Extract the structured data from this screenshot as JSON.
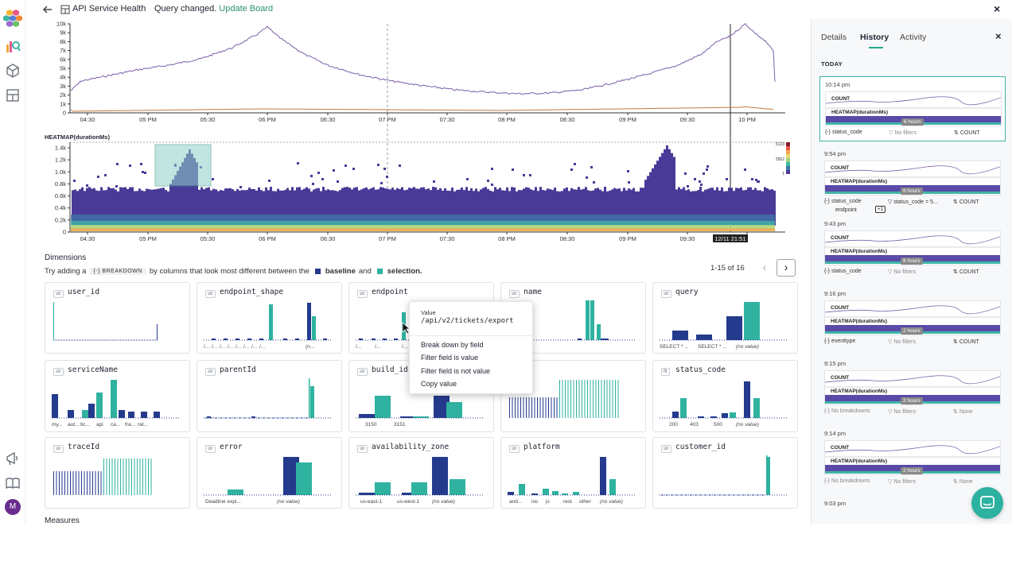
{
  "topbar": {
    "board_title": "API Service Health",
    "query_status": "Query changed.",
    "update_link": "Update Board",
    "close": "×"
  },
  "main_chart": {
    "y_ticks": [
      "10k",
      "9k",
      "8k",
      "7k",
      "6k",
      "5k",
      "4k",
      "3k",
      "2k",
      "1k",
      "0"
    ],
    "x_ticks": [
      "04:30",
      "05 PM",
      "05:30",
      "06 PM",
      "06:30",
      "07 PM",
      "07:30",
      "08 PM",
      "08:30",
      "09 PM",
      "09:30",
      "10 PM"
    ],
    "series": [
      {
        "name": "COUNT",
        "color": "#7b5ea8"
      },
      {
        "name": "baseline",
        "color": "#c47a3c"
      }
    ]
  },
  "heatmap": {
    "title": "HEATMAP(durationMs)",
    "y_ticks": [
      "1.4k",
      "1.2k",
      "1.0k",
      "0.8k",
      "0.6k",
      "0.4k",
      "0.2k",
      "0"
    ],
    "x_ticks": [
      "04:30",
      "05 PM",
      "05:30",
      "06 PM",
      "06:30",
      "07 PM",
      "07:30",
      "08 PM",
      "08:30",
      "09 PM",
      "09:30",
      "10 PM"
    ],
    "cursor_label": "12/11 21:51",
    "legend_max": "5123",
    "legend_mid": "2562",
    "legend_min": "1"
  },
  "dimensions": {
    "title": "Dimensions",
    "hint_pre": "Try adding a",
    "chip": "BREAKDOWN",
    "hint_mid": "by columns that look most different between the",
    "baseline": "baseline",
    "and": "and",
    "selection": "selection.",
    "baseline_color": "#243a8c",
    "selection_color": "#2fb2a0",
    "pager": "1-15 of 16",
    "prev": "‹",
    "next": "›"
  },
  "cards": [
    {
      "tag": "str",
      "name": "user_id",
      "labels": []
    },
    {
      "tag": "str",
      "name": "endpoint_shape",
      "labels": [
        "/...",
        "/...",
        "/...",
        "/...",
        "/...",
        "/...",
        "/...",
        "/...",
        "(n..."
      ]
    },
    {
      "tag": "str",
      "name": "endpoint",
      "labels": [
        "/...",
        "/...",
        "/...",
        "/..."
      ]
    },
    {
      "tag": "str",
      "name": "name",
      "labels": []
    },
    {
      "tag": "str",
      "name": "query",
      "labels": [
        "SELECT * ...",
        "SELECT * ...",
        "(no value)"
      ]
    },
    {
      "tag": "str",
      "name": "serviceName",
      "labels": [
        "my...",
        "aut...",
        "tic...",
        "api",
        "ca...",
        "fra...",
        "rat..."
      ]
    },
    {
      "tag": "str",
      "name": "parentId",
      "labels": []
    },
    {
      "tag": "str",
      "name": "build_id",
      "labels": [
        "3150",
        "3151"
      ]
    },
    {
      "tag": "str",
      "name": "",
      "labels": []
    },
    {
      "tag": "flt",
      "name": "status_code",
      "labels": [
        "200",
        "403",
        "500",
        "(no value)"
      ]
    },
    {
      "tag": "str",
      "name": "traceId",
      "labels": []
    },
    {
      "tag": "str",
      "name": "error",
      "labels": [
        "Deadline expi...",
        "(no value)"
      ]
    },
    {
      "tag": "str",
      "name": "availability_zone",
      "labels": [
        "us-east-1",
        "us-west-1",
        "(no value)"
      ]
    },
    {
      "tag": "str",
      "name": "platform",
      "labels": [
        "and...",
        "ios",
        "js",
        "rest",
        "other",
        "(no value)"
      ]
    },
    {
      "tag": "str",
      "name": "customer_id",
      "labels": []
    }
  ],
  "context_menu": {
    "value_label": "Value",
    "value": "/api/v2/tickets/export",
    "items": [
      "Break down by field",
      "Filter field is value",
      "Filter field is not value",
      "Copy value"
    ]
  },
  "measures_title": "Measures",
  "side": {
    "tabs": [
      "Details",
      "History",
      "Activity"
    ],
    "active_tab": "History",
    "close": "×",
    "section": "TODAY",
    "history": [
      {
        "time": "10:14 pm",
        "count": "COUNT",
        "heat": "HEATMAP(durationMs)",
        "dur": "6 hours",
        "breakdown": "status_code",
        "breakdown2": "",
        "plus": "",
        "filters": "No filters",
        "order": "COUNT"
      },
      {
        "time": "9:54 pm",
        "count": "COUNT",
        "heat": "HEATMAP(durationMs)",
        "dur": "6 hours",
        "breakdown": "status_code",
        "breakdown2": "endpoint",
        "plus": "+1",
        "filters": "status_code = 5...",
        "order": "COUNT"
      },
      {
        "time": "9:43 pm",
        "count": "COUNT",
        "heat": "HEATMAP(durationMs)",
        "dur": "6 hours",
        "breakdown": "status_code",
        "breakdown2": "",
        "plus": "",
        "filters": "No filters",
        "order": "COUNT"
      },
      {
        "time": "9:16 pm",
        "count": "COUNT",
        "heat": "HEATMAP(durationMs)",
        "dur": "2 hours",
        "breakdown": "eventtype",
        "breakdown2": "",
        "plus": "",
        "filters": "No filters",
        "order": "COUNT"
      },
      {
        "time": "9:15 pm",
        "count": "COUNT",
        "heat": "HEATMAP(durationMs)",
        "dur": "2 hours",
        "breakdown": "No breakdowns",
        "breakdown2": "",
        "plus": "",
        "filters": "No filters",
        "order": "None"
      },
      {
        "time": "9:14 pm",
        "count": "COUNT",
        "heat": "HEATMAP(durationMs)",
        "dur": "2 hours",
        "breakdown": "No breakdowns",
        "breakdown2": "",
        "plus": "",
        "filters": "No filters",
        "order": "None"
      },
      {
        "time": "9:03 pm",
        "count": "",
        "heat": "",
        "dur": "",
        "breakdown": "",
        "breakdown2": "",
        "plus": "",
        "filters": "",
        "order": ""
      }
    ]
  },
  "avatar_initial": "M"
}
